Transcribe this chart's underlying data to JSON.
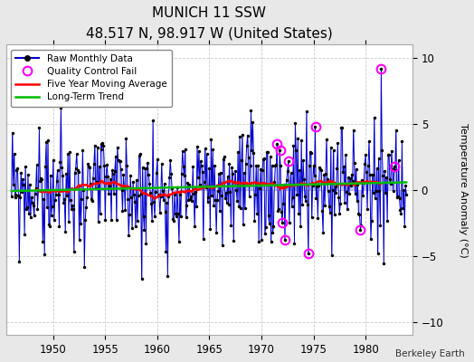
{
  "title": "MUNICH 11 SSW",
  "subtitle": "48.517 N, 98.917 W (United States)",
  "ylabel": "Temperature Anomaly (°C)",
  "credit": "Berkeley Earth",
  "xlim": [
    1945.5,
    1984.5
  ],
  "ylim": [
    -11,
    11
  ],
  "yticks": [
    -10,
    -5,
    0,
    5,
    10
  ],
  "xticks": [
    1950,
    1955,
    1960,
    1965,
    1970,
    1975,
    1980
  ],
  "bg_color": "#e8e8e8",
  "plot_bg": "#ffffff",
  "line_color": "#0000cc",
  "stem_color": "#8888ff",
  "marker_color": "#000000",
  "ma_color": "#ff0000",
  "trend_color": "#00bb00",
  "qc_color": "#ff00ff",
  "seed": 99
}
